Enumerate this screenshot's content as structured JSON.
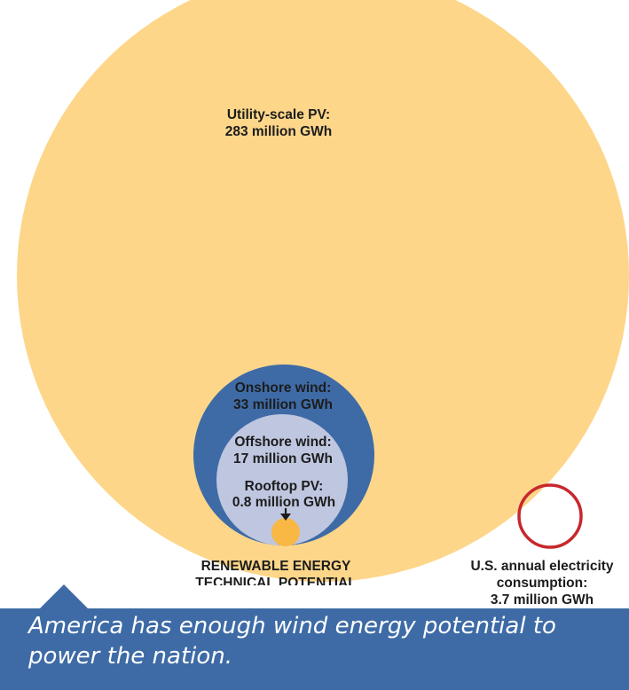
{
  "colors": {
    "utility_pv": "#fdd68a",
    "onshore_wind": "#3e6ba6",
    "offshore_wind": "#bfc6e0",
    "rooftop_pv": "#f9b744",
    "consumption_ring": "#c7282d",
    "caption_bg": "#3e6ba6",
    "label_text": "#1c1c1c"
  },
  "circles": {
    "utility_pv": {
      "label_line1": "Utility-scale PV:",
      "label_line2": "283 million GWh",
      "value_million_gwh": 283
    },
    "onshore_wind": {
      "label_line1": "Onshore wind:",
      "label_line2": "33 million GWh",
      "value_million_gwh": 33
    },
    "offshore_wind": {
      "label_line1": "Offshore wind:",
      "label_line2": "17 million GWh",
      "value_million_gwh": 17
    },
    "rooftop_pv": {
      "label_line1": "Rooftop PV:",
      "label_line2": "0.8 million GWh",
      "value_million_gwh": 0.8
    }
  },
  "group_label": {
    "line1": "RENEWABLE ENERGY",
    "line2": "TECHNICAL POTENTIAL"
  },
  "consumption": {
    "line1": "U.S. annual electricity",
    "line2": "consumption:",
    "line3": "3.7 million GWh",
    "value_million_gwh": 3.7
  },
  "caption": "America has enough wind energy potential to power the nation.",
  "icons": {
    "rooftop_pointer": "down-arrow-icon"
  }
}
